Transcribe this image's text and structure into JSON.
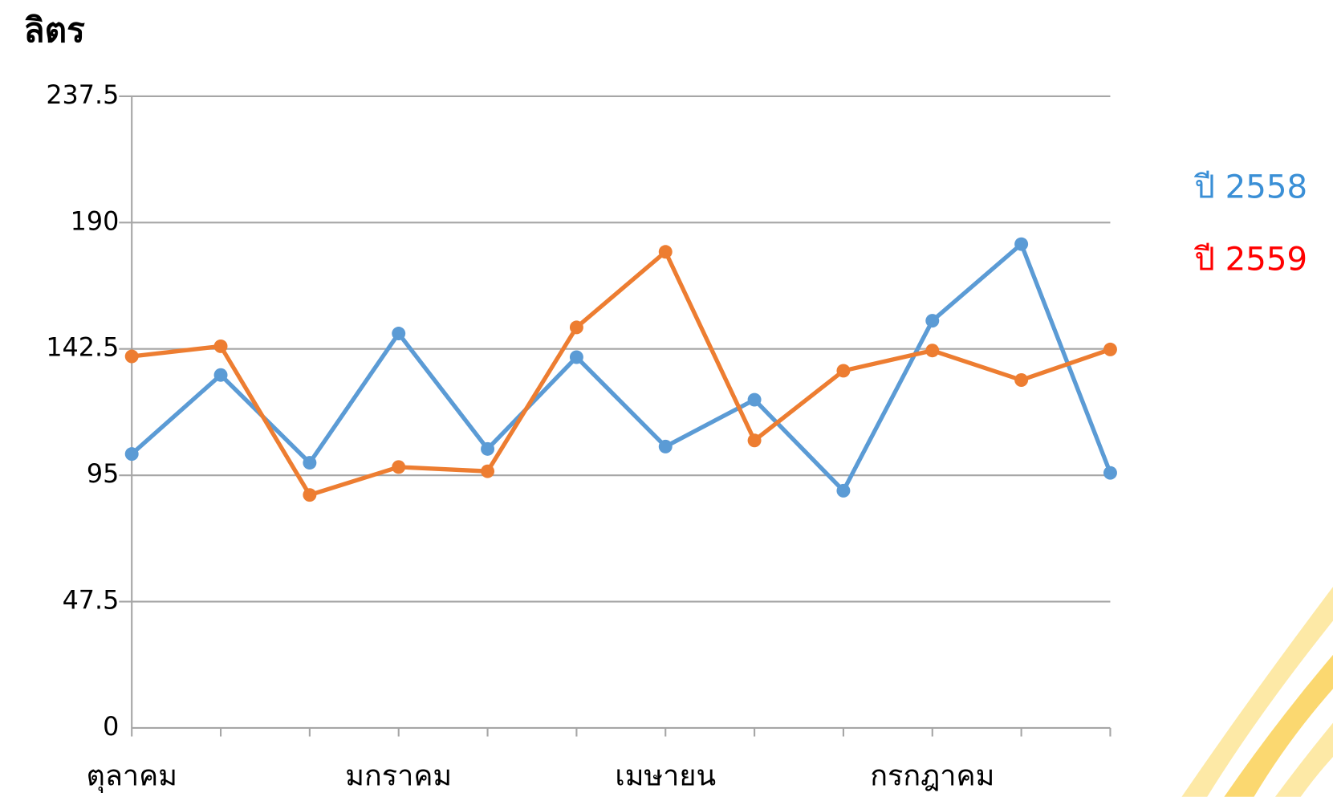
{
  "chart_data": {
    "type": "line",
    "y_label": "ลิตร",
    "categories": [
      "ตุลาคม",
      null,
      null,
      "มกราคม",
      null,
      null,
      "เมษายน",
      null,
      null,
      "กรกฎาคม",
      null,
      null
    ],
    "series": [
      {
        "name": "ปี 2558",
        "color": "#5b9bd5",
        "label_color": "#3a8fd6",
        "values": [
          103,
          132.7,
          99.7,
          148.3,
          104.9,
          139.4,
          105.8,
          123.4,
          89.2,
          153.1,
          181.9,
          95.9
        ]
      },
      {
        "name": "ปี 2559",
        "color": "#ed7d31",
        "label_color": "#ff0000",
        "values": [
          139.7,
          143.5,
          87.6,
          98.1,
          96.5,
          150.6,
          179,
          108.1,
          134.3,
          141.9,
          130.8,
          142.3
        ]
      }
    ],
    "ylim": [
      0,
      237.5
    ],
    "yticks": [
      0,
      47.5,
      95,
      142.5,
      190,
      237.5
    ],
    "grid": true
  }
}
